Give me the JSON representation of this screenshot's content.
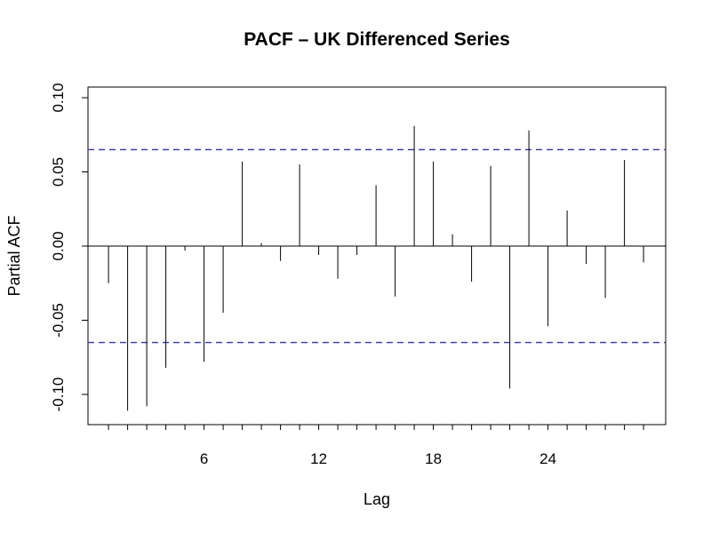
{
  "chart_data": {
    "type": "bar",
    "title": "PACF – UK Differenced Series",
    "xlabel": "Lag",
    "ylabel": "Partial ACF",
    "x": [
      1,
      2,
      3,
      4,
      5,
      6,
      7,
      8,
      9,
      10,
      11,
      12,
      13,
      14,
      15,
      16,
      17,
      18,
      19,
      20,
      21,
      22,
      23,
      24,
      25,
      26,
      27,
      28,
      29
    ],
    "values": [
      -0.025,
      -0.111,
      -0.108,
      -0.082,
      -0.003,
      -0.078,
      -0.045,
      0.057,
      0.002,
      -0.01,
      0.055,
      -0.006,
      -0.022,
      -0.006,
      0.041,
      -0.034,
      0.081,
      0.057,
      0.008,
      -0.024,
      0.054,
      -0.096,
      0.078,
      -0.054,
      0.024,
      -0.012,
      -0.035,
      0.058,
      -0.011
    ],
    "confidence_band": [
      -0.065,
      0.065
    ],
    "xticks": [
      6,
      12,
      18,
      24
    ],
    "xtick_labels": [
      "6",
      "12",
      "18",
      "24"
    ],
    "yticks": [
      -0.1,
      -0.05,
      0.0,
      0.05,
      0.1
    ],
    "ytick_labels": [
      "-0.10",
      "-0.05",
      "0.00",
      "0.05",
      "0.10"
    ],
    "xlim": [
      0,
      30
    ],
    "ylim": [
      -0.12,
      0.1
    ],
    "colors": {
      "bars": "#000000",
      "band": "#3333cc",
      "zero_line": "#000000",
      "frame": "#000000"
    }
  }
}
